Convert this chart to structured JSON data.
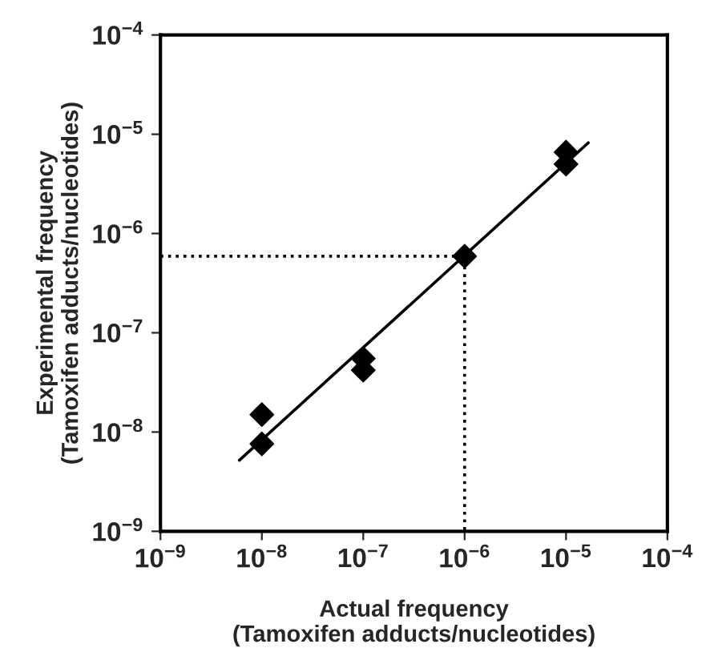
{
  "chart_data": {
    "type": "scatter",
    "xlabel": "Actual frequency\n(Tamoxifen adducts/nucleotides)",
    "ylabel": "Experimental frequency\n(Tamoxifen adducts/nucleotides)",
    "log": "xy",
    "grid": false,
    "legend": false,
    "xlim": [
      1e-09,
      0.0001
    ],
    "ylim": [
      1e-09,
      0.0001
    ],
    "xticks": [
      {
        "value": 1e-09,
        "label": "10$^{−9}$"
      },
      {
        "value": 1e-08,
        "label": "10$^{−8}$"
      },
      {
        "value": 1e-07,
        "label": "10$^{−7}$"
      },
      {
        "value": 1e-06,
        "label": "10$^{−6}$"
      },
      {
        "value": 1e-05,
        "label": "10$^{−5}$"
      },
      {
        "value": 0.0001,
        "label": "10$^{−4}$"
      }
    ],
    "yticks": [
      {
        "value": 1e-09,
        "label": "10$^{−9}$"
      },
      {
        "value": 1e-08,
        "label": "10$^{−8}$"
      },
      {
        "value": 1e-07,
        "label": "10$^{−7}$"
      },
      {
        "value": 1e-06,
        "label": "10$^{−6}$"
      },
      {
        "value": 1e-05,
        "label": "10$^{−5}$"
      },
      {
        "value": 0.0001,
        "label": "10$^{−4}$"
      }
    ],
    "series": [
      {
        "marker": "diamond",
        "color": "#000000",
        "x": [
          1e-08,
          1e-08,
          1e-07,
          1e-07,
          1e-06,
          1e-05,
          1e-05
        ],
        "values": [
          1.5e-08,
          7.6e-09,
          5.5e-08,
          4.2e-08,
          5.9e-07,
          6.6e-06,
          5e-06
        ]
      },
      {
        "type": "line",
        "color": "#000000",
        "line_style": "solid",
        "x": [
          6e-09,
          1.66e-05
        ],
        "values": [
          5.2e-09,
          8.2e-06
        ]
      },
      {
        "type": "line",
        "color": "#000000",
        "line_style": "dotted",
        "x": [
          1e-09,
          1e-06,
          1e-06
        ],
        "values": [
          5.9e-07,
          5.9e-07,
          1e-09
        ]
      }
    ]
  }
}
